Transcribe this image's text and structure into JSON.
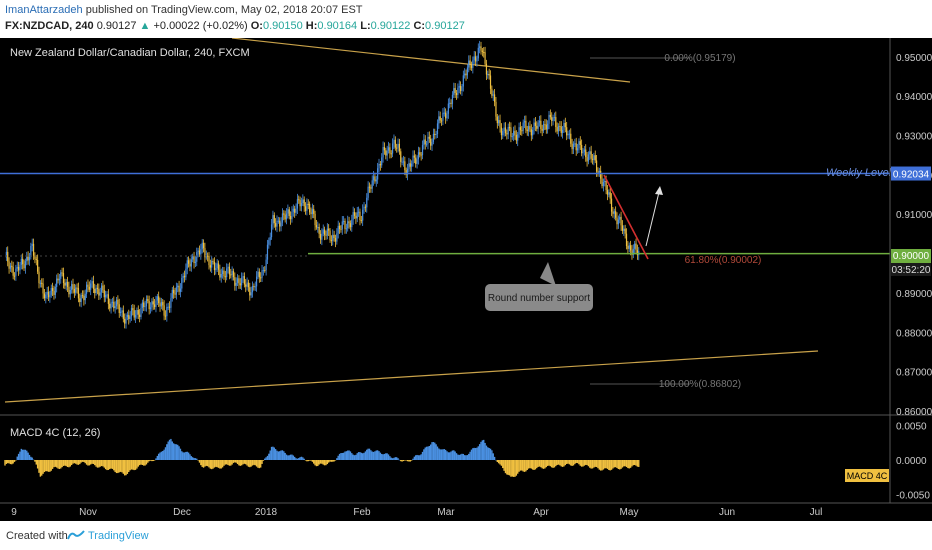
{
  "header": {
    "author": "ImanAttarzadeh",
    "published_text": "published on TradingView.com, May 02, 2018 20:07 EST",
    "symbol": "FX:NZDCAD, 240",
    "last": "0.90127",
    "change": "+0.00022 (+0.02%)",
    "open_label": "O:",
    "open": "0.90150",
    "high_label": "H:",
    "high": "0.90164",
    "low_label": "L:",
    "low": "0.90122",
    "close_label": "C:",
    "close": "0.90127"
  },
  "footer": {
    "created_with": "Created with",
    "brand": "TradingView"
  },
  "colors": {
    "background": "#000000",
    "up": "#4a90e2",
    "down": "#f0c040",
    "weekly": "#3f6fd8",
    "support": "#6fae3f",
    "trend": "#c9a24a",
    "red_trend": "#d32f2f",
    "axis_text": "#cccccc"
  },
  "chart_data": {
    "type": "candlestick",
    "title": "New Zealand Dollar/Canadian Dollar, 240, FXCM",
    "x_ticks": [
      "9",
      "Nov",
      "Dec",
      "2018",
      "Feb",
      "Mar",
      "Apr",
      "May",
      "Jun",
      "Jul"
    ],
    "y_ticks": [
      "0.95000",
      "0.94000",
      "0.93000",
      "0.92000",
      "0.91000",
      "0.89000",
      "0.88000",
      "0.87000",
      "0.86000"
    ],
    "ylim": [
      0.8595,
      0.9535
    ],
    "price_path": [
      [
        0,
        0.899
      ],
      [
        8,
        0.895
      ],
      [
        20,
        0.901
      ],
      [
        30,
        0.888
      ],
      [
        40,
        0.894
      ],
      [
        55,
        0.889
      ],
      [
        65,
        0.892
      ],
      [
        80,
        0.887
      ],
      [
        90,
        0.8835
      ],
      [
        100,
        0.886
      ],
      [
        110,
        0.888
      ],
      [
        118,
        0.8855
      ],
      [
        128,
        0.892
      ],
      [
        138,
        0.899
      ],
      [
        146,
        0.901
      ],
      [
        154,
        0.896
      ],
      [
        164,
        0.895
      ],
      [
        172,
        0.893
      ],
      [
        182,
        0.891
      ],
      [
        190,
        0.896
      ],
      [
        197,
        0.908
      ],
      [
        206,
        0.909
      ],
      [
        214,
        0.912
      ],
      [
        222,
        0.913
      ],
      [
        230,
        0.906
      ],
      [
        240,
        0.904
      ],
      [
        252,
        0.908
      ],
      [
        262,
        0.91
      ],
      [
        270,
        0.918
      ],
      [
        278,
        0.925
      ],
      [
        286,
        0.928
      ],
      [
        296,
        0.921
      ],
      [
        305,
        0.926
      ],
      [
        315,
        0.93
      ],
      [
        322,
        0.935
      ],
      [
        330,
        0.94
      ],
      [
        338,
        0.945
      ],
      [
        345,
        0.95
      ],
      [
        350,
        0.9518
      ],
      [
        356,
        0.945
      ],
      [
        362,
        0.933
      ],
      [
        372,
        0.93
      ],
      [
        382,
        0.932
      ],
      [
        392,
        0.932
      ],
      [
        402,
        0.934
      ],
      [
        412,
        0.931
      ],
      [
        420,
        0.927
      ],
      [
        430,
        0.925
      ],
      [
        438,
        0.92
      ],
      [
        446,
        0.912
      ],
      [
        454,
        0.906
      ],
      [
        460,
        0.901
      ],
      [
        466,
        0.9
      ]
    ],
    "macd_hist": [
      [
        0,
        -0.0008
      ],
      [
        8,
        -0.0002
      ],
      [
        12,
        0.0018
      ],
      [
        20,
        0.0005
      ],
      [
        26,
        -0.0022
      ],
      [
        36,
        -0.0012
      ],
      [
        44,
        -0.001
      ],
      [
        56,
        -0.0004
      ],
      [
        66,
        -0.0008
      ],
      [
        78,
        -0.0014
      ],
      [
        88,
        -0.0021
      ],
      [
        98,
        -0.001
      ],
      [
        108,
        -0.0002
      ],
      [
        114,
        0.0009
      ],
      [
        122,
        0.003
      ],
      [
        130,
        0.0014
      ],
      [
        138,
        0.0006
      ],
      [
        146,
        -0.001
      ],
      [
        156,
        -0.0012
      ],
      [
        168,
        -0.0005
      ],
      [
        178,
        -0.0008
      ],
      [
        188,
        -0.001
      ],
      [
        196,
        0.0018
      ],
      [
        204,
        0.0012
      ],
      [
        212,
        0.0005
      ],
      [
        220,
        0.0002
      ],
      [
        230,
        -0.0008
      ],
      [
        240,
        -0.0004
      ],
      [
        250,
        0.0014
      ],
      [
        258,
        0.0008
      ],
      [
        268,
        0.0015
      ],
      [
        278,
        0.001
      ],
      [
        288,
        0.0002
      ],
      [
        296,
        -0.0003
      ],
      [
        306,
        0.001
      ],
      [
        314,
        0.0026
      ],
      [
        322,
        0.0014
      ],
      [
        330,
        0.0012
      ],
      [
        338,
        0.0006
      ],
      [
        346,
        0.0018
      ],
      [
        352,
        0.0028
      ],
      [
        358,
        0.0012
      ],
      [
        364,
        -0.0008
      ],
      [
        372,
        -0.0026
      ],
      [
        380,
        -0.0016
      ],
      [
        390,
        -0.0012
      ],
      [
        400,
        -0.001
      ],
      [
        410,
        -0.0008
      ],
      [
        420,
        -0.0006
      ],
      [
        430,
        -0.001
      ],
      [
        440,
        -0.0014
      ],
      [
        450,
        -0.0012
      ],
      [
        460,
        -0.001
      ],
      [
        466,
        -0.0008
      ]
    ],
    "levels": {
      "weekly_level": 0.92034,
      "weekly_label": "Weekly Level",
      "weekly_tag": "0.92034",
      "support": 0.9,
      "support_tag": "0.90000",
      "countdown_tag": "03:52:20",
      "fib_top": "0.00%(0.95179)",
      "fib_mid": "61.80%(0.90002)",
      "fib_bottom": "100.00%(0.86802)"
    },
    "annotation": "Round number support",
    "macd": {
      "title": "MACD 4C (12, 26)",
      "y_ticks": [
        "0.0050",
        "0.0000",
        "-0.0050"
      ],
      "ylim": [
        -0.0059,
        0.0059
      ],
      "tag": "MACD 4C"
    }
  }
}
